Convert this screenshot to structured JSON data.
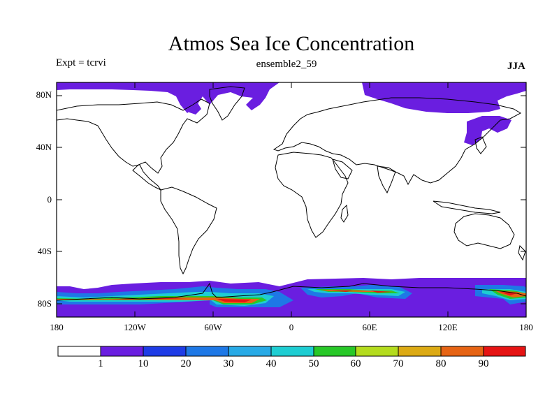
{
  "title": "Atmos Sea Ice Concentration",
  "left_label": "Expt = tcrvi",
  "center_label": "ensemble2_59",
  "right_label": "JJA",
  "map": {
    "projection": "cylindrical-equidistant",
    "lon_range": [
      -180,
      180
    ],
    "lat_range": [
      -90,
      90
    ],
    "y_ticks": [
      "80N",
      "40N",
      "0",
      "40S",
      "80S"
    ],
    "x_ticks": [
      "180",
      "120W",
      "60W",
      "0",
      "60E",
      "120E",
      "180"
    ]
  },
  "colorbar": {
    "labels": [
      "1",
      "10",
      "20",
      "30",
      "40",
      "50",
      "60",
      "70",
      "80",
      "90"
    ],
    "colors": [
      "#ffffff",
      "#6a1ee0",
      "#1e3ce6",
      "#1e78e6",
      "#28aae6",
      "#1ecdd2",
      "#28c828",
      "#b4dc1e",
      "#dcaa14",
      "#e66414",
      "#e61414"
    ]
  }
}
